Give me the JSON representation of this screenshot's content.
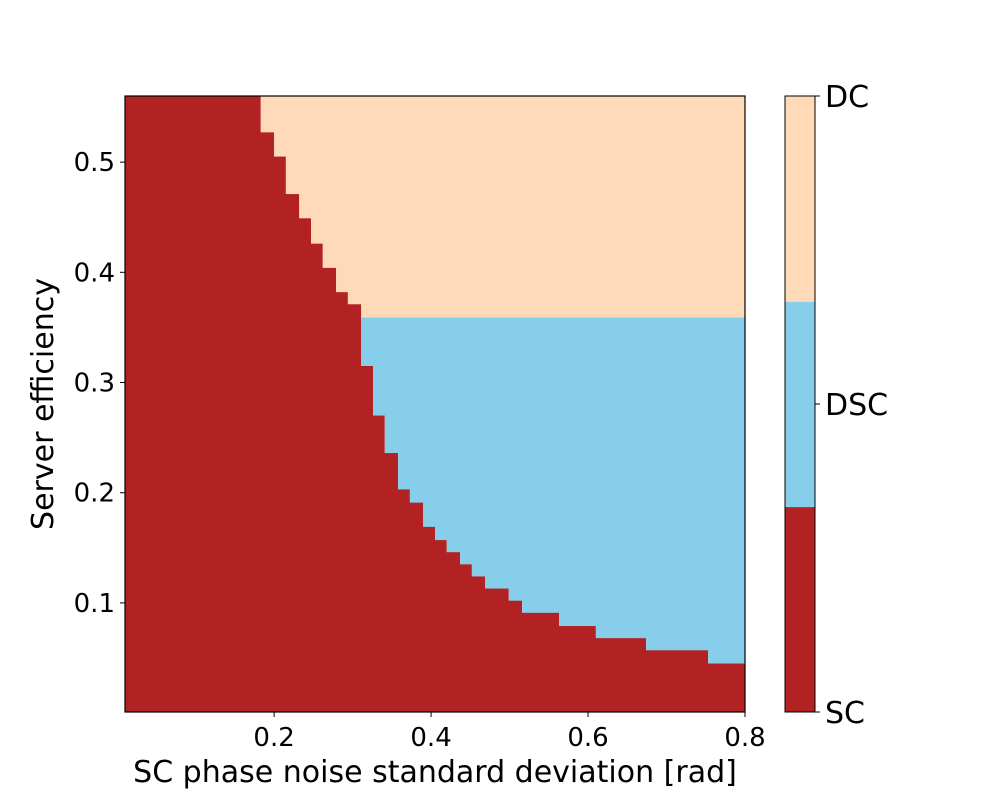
{
  "chart_data": {
    "type": "heatmap",
    "title": "",
    "xlabel": "SC phase noise standard deviation [rad]",
    "ylabel": "Server efficiency",
    "xlim": [
      0.01,
      0.8
    ],
    "ylim": [
      0.001,
      0.56
    ],
    "xticks": [
      0.2,
      0.4,
      0.6,
      0.8
    ],
    "xtick_labels": [
      "0.2",
      "0.4",
      "0.6",
      "0.8"
    ],
    "yticks": [
      0.1,
      0.2,
      0.3,
      0.4,
      0.5
    ],
    "ytick_labels": [
      "0.1",
      "0.2",
      "0.3",
      "0.4",
      "0.5"
    ],
    "grid": false,
    "classes": [
      {
        "label": "SC",
        "color": "#b22222"
      },
      {
        "label": "DSC",
        "color": "#87ceeb"
      },
      {
        "label": "DC",
        "color": "#ffdab9"
      }
    ],
    "regions_description_rule": "For each efficiency band, points with noise below sc_x_max are SC; above it, DC if efficiency >= dc_dsc_boundary else DSC",
    "dc_dsc_boundary": 0.359,
    "sc_boundary_steps": [
      {
        "y_low": 0.527,
        "y_high": 0.56,
        "sc_x_max": 0.183
      },
      {
        "y_low": 0.505,
        "y_high": 0.527,
        "sc_x_max": 0.2
      },
      {
        "y_low": 0.471,
        "y_high": 0.505,
        "sc_x_max": 0.215
      },
      {
        "y_low": 0.449,
        "y_high": 0.471,
        "sc_x_max": 0.232
      },
      {
        "y_low": 0.426,
        "y_high": 0.449,
        "sc_x_max": 0.247
      },
      {
        "y_low": 0.404,
        "y_high": 0.426,
        "sc_x_max": 0.262
      },
      {
        "y_low": 0.382,
        "y_high": 0.404,
        "sc_x_max": 0.279
      },
      {
        "y_low": 0.371,
        "y_high": 0.382,
        "sc_x_max": 0.294
      },
      {
        "y_low": 0.315,
        "y_high": 0.371,
        "sc_x_max": 0.311
      },
      {
        "y_low": 0.27,
        "y_high": 0.315,
        "sc_x_max": 0.326
      },
      {
        "y_low": 0.236,
        "y_high": 0.27,
        "sc_x_max": 0.341
      },
      {
        "y_low": 0.203,
        "y_high": 0.236,
        "sc_x_max": 0.358
      },
      {
        "y_low": 0.191,
        "y_high": 0.203,
        "sc_x_max": 0.373
      },
      {
        "y_low": 0.169,
        "y_high": 0.191,
        "sc_x_max": 0.39
      },
      {
        "y_low": 0.157,
        "y_high": 0.169,
        "sc_x_max": 0.405
      },
      {
        "y_low": 0.146,
        "y_high": 0.157,
        "sc_x_max": 0.42
      },
      {
        "y_low": 0.135,
        "y_high": 0.146,
        "sc_x_max": 0.437
      },
      {
        "y_low": 0.124,
        "y_high": 0.135,
        "sc_x_max": 0.452
      },
      {
        "y_low": 0.113,
        "y_high": 0.124,
        "sc_x_max": 0.469
      },
      {
        "y_low": 0.102,
        "y_high": 0.113,
        "sc_x_max": 0.499
      },
      {
        "y_low": 0.091,
        "y_high": 0.102,
        "sc_x_max": 0.516
      },
      {
        "y_low": 0.079,
        "y_high": 0.091,
        "sc_x_max": 0.563
      },
      {
        "y_low": 0.068,
        "y_high": 0.079,
        "sc_x_max": 0.61
      },
      {
        "y_low": 0.057,
        "y_high": 0.068,
        "sc_x_max": 0.674
      },
      {
        "y_low": 0.045,
        "y_high": 0.057,
        "sc_x_max": 0.753
      },
      {
        "y_low": 0.001,
        "y_high": 0.045,
        "sc_x_max": 0.8
      }
    ],
    "colorbar": {
      "position": "right",
      "labels": [
        "SC",
        "DSC",
        "DC"
      ]
    }
  }
}
